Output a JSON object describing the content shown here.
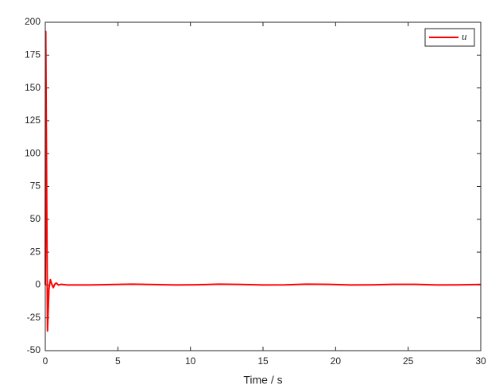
{
  "chart_data": {
    "type": "line",
    "xlabel": "Time / s",
    "x": [
      0,
      0.03,
      0.15,
      0.25,
      0.35,
      0.45,
      0.55,
      0.65,
      0.75,
      0.9,
      1.1,
      1.5,
      3,
      4.5,
      6,
      7.5,
      9,
      10.5,
      12,
      13.5,
      15,
      16.5,
      18,
      19.5,
      21,
      22.5,
      24,
      25.5,
      27,
      28.5,
      30
    ],
    "series": [
      {
        "name": "u",
        "color": "#ff0000",
        "values": [
          0,
          193,
          -35,
          -3,
          4,
          0.5,
          -2,
          0.5,
          1.5,
          0,
          0.5,
          0,
          0,
          0.3,
          0.6,
          0.3,
          0,
          0.2,
          0.6,
          0.4,
          0,
          0.1,
          0.6,
          0.5,
          0,
          0.1,
          0.5,
          0.5,
          0,
          0.1,
          0.4
        ]
      }
    ],
    "xlim": [
      0,
      30
    ],
    "xticks": [
      0,
      5,
      10,
      15,
      20,
      25,
      30
    ],
    "ylim": [
      -50,
      200
    ],
    "yticks": [
      -50,
      -25,
      0,
      25,
      50,
      75,
      100,
      125,
      150,
      175,
      200
    ],
    "legend": "northeast",
    "grid": false
  }
}
